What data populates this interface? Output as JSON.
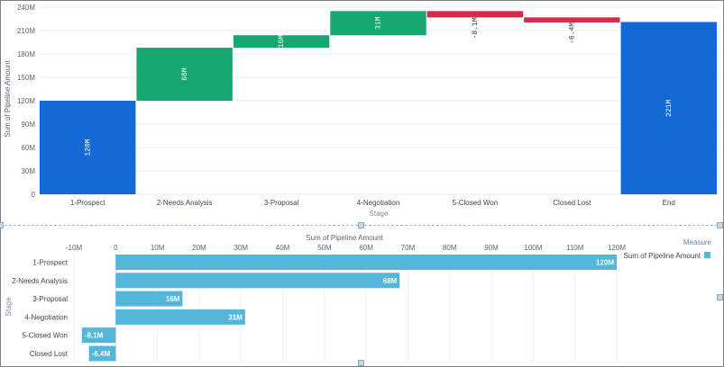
{
  "chart_data": [
    {
      "type": "waterfall",
      "ylabel": "Sum of Pipeline Amount",
      "xlabel": "Stage",
      "ylim": [
        0,
        240
      ],
      "yticks": [
        0,
        30,
        60,
        90,
        120,
        150,
        180,
        210,
        240
      ],
      "ytick_labels": [
        "0",
        "30M",
        "60M",
        "90M",
        "120M",
        "150M",
        "180M",
        "210M",
        "240M"
      ],
      "categories": [
        "1-Prospect",
        "2-Needs Analysis",
        "3-Proposal",
        "4-Negotiation",
        "5-Closed Won",
        "Closed Lost",
        "End"
      ],
      "values": [
        120,
        68,
        16,
        31,
        -8.1,
        -6.4,
        221
      ],
      "value_labels": [
        "120M",
        "68M",
        "16M",
        "31M",
        "-8.1M",
        "-6.4M",
        "221M"
      ],
      "kinds": [
        "total",
        "increase",
        "increase",
        "increase",
        "decrease",
        "decrease",
        "total"
      ],
      "colors": {
        "total": "#1569d6",
        "increase": "#16a870",
        "decrease": "#da2848"
      },
      "grid": true
    },
    {
      "type": "bar",
      "orientation": "horizontal",
      "title": "Sum of Pipeline Amount",
      "ylabel": "Stage",
      "xlim": [
        -10,
        120
      ],
      "xticks": [
        -10,
        0,
        10,
        20,
        30,
        40,
        50,
        60,
        70,
        80,
        90,
        100,
        110,
        120
      ],
      "xtick_labels": [
        "-10M",
        "0",
        "10M",
        "20M",
        "30M",
        "40M",
        "50M",
        "60M",
        "70M",
        "80M",
        "90M",
        "100M",
        "110M",
        "120M"
      ],
      "categories": [
        "1-Prospect",
        "2-Needs Analysis",
        "3-Proposal",
        "4-Negotiation",
        "5-Closed Won",
        "Closed Lost"
      ],
      "series": [
        {
          "name": "Sum of Pipeline Amount",
          "values": [
            120,
            68,
            16,
            31,
            -8.1,
            -6.4
          ],
          "labels": [
            "120M",
            "68M",
            "16M",
            "31M",
            "-8.1M",
            "-6.4M"
          ]
        }
      ],
      "color": "#54b6d8",
      "legend": {
        "title": "Measure",
        "position": "right"
      },
      "grid": true
    }
  ]
}
